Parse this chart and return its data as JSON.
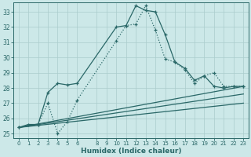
{
  "xlabel": "Humidex (Indice chaleur)",
  "background_color": "#cce8e8",
  "line_color": "#2a6868",
  "grid_color": "#aacccc",
  "ylim": [
    24.7,
    33.6
  ],
  "xlim": [
    -0.5,
    23.5
  ],
  "yticks": [
    25,
    26,
    27,
    28,
    29,
    30,
    31,
    32,
    33
  ],
  "xticks": [
    0,
    1,
    2,
    3,
    4,
    5,
    6,
    8,
    9,
    10,
    11,
    12,
    13,
    14,
    15,
    16,
    17,
    18,
    19,
    20,
    21,
    22,
    23
  ],
  "series1_x": [
    0,
    1,
    2,
    3,
    4,
    5,
    6,
    10,
    11,
    12,
    13,
    14,
    15,
    16,
    17,
    18,
    19,
    20,
    21,
    22,
    23
  ],
  "series1_y": [
    25.4,
    25.6,
    25.6,
    27.7,
    28.3,
    28.2,
    28.3,
    32.0,
    32.1,
    33.4,
    33.1,
    33.0,
    31.5,
    29.7,
    29.3,
    28.5,
    28.8,
    28.1,
    28.0,
    28.1,
    28.1
  ],
  "series2_x": [
    0,
    2,
    3,
    4,
    5,
    6,
    10,
    11,
    12,
    13,
    14,
    15,
    16,
    17,
    18,
    19,
    20,
    21,
    22,
    23
  ],
  "series2_y": [
    25.4,
    25.6,
    27.0,
    25.0,
    25.8,
    27.2,
    31.1,
    32.1,
    32.2,
    33.4,
    31.8,
    29.9,
    29.7,
    29.2,
    28.3,
    28.8,
    29.0,
    28.1,
    28.1,
    28.1
  ],
  "series3_x": [
    0,
    23
  ],
  "series3_y": [
    25.4,
    28.1
  ],
  "series4_x": [
    0,
    23
  ],
  "series4_y": [
    25.4,
    27.6
  ],
  "series5_x": [
    0,
    23
  ],
  "series5_y": [
    25.4,
    27.0
  ]
}
